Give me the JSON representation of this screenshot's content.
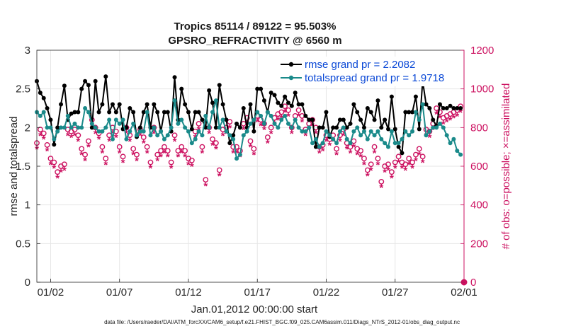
{
  "chart_data": {
    "type": "line",
    "title": "Tropics 85114 / 89122 = 95.503%",
    "subtitle": "GPSRO_REFRACTIVITY @ 6560 m",
    "xlabel": "Jan.01,2012 00:00:00 start",
    "ylabel_left": "rmse and totalspread",
    "ylabel_right": "# of obs: o=possible; ×=assimilated",
    "xlim": [
      1.0,
      32.0
    ],
    "ylim_left": [
      0,
      3
    ],
    "ylim_right": [
      0,
      1200
    ],
    "xticks": [
      {
        "label": "01/02",
        "value": 2
      },
      {
        "label": "01/07",
        "value": 7
      },
      {
        "label": "01/12",
        "value": 12
      },
      {
        "label": "01/17",
        "value": 17
      },
      {
        "label": "01/22",
        "value": 22
      },
      {
        "label": "01/27",
        "value": 27
      },
      {
        "label": "02/01",
        "value": 32
      }
    ],
    "yticks_left": [
      "0",
      "0.5",
      "1",
      "1.5",
      "2",
      "2.5",
      "3"
    ],
    "yticks_right": [
      "0",
      "200",
      "400",
      "600",
      "800",
      "1000",
      "1200"
    ],
    "grid": true,
    "legend_position": "top-right",
    "series": [
      {
        "name": "rmse grand pr = 2.2082",
        "color": "#000000",
        "axis": "left",
        "x": [
          1.0,
          1.25,
          1.5,
          1.75,
          2.0,
          2.25,
          2.5,
          2.75,
          3.0,
          3.25,
          3.5,
          3.75,
          4.0,
          4.25,
          4.5,
          4.75,
          5.0,
          5.25,
          5.5,
          5.75,
          6.0,
          6.25,
          6.5,
          6.75,
          7.0,
          7.25,
          7.5,
          7.75,
          8.0,
          8.25,
          8.5,
          8.75,
          9.0,
          9.25,
          9.5,
          9.75,
          10.0,
          10.25,
          10.5,
          10.75,
          11.0,
          11.25,
          11.5,
          11.75,
          12.0,
          12.25,
          12.5,
          12.75,
          13.0,
          13.25,
          13.5,
          13.75,
          14.0,
          14.25,
          14.5,
          14.75,
          15.0,
          15.25,
          15.5,
          15.75,
          16.0,
          16.25,
          16.5,
          16.75,
          17.0,
          17.25,
          17.5,
          17.75,
          18.0,
          18.25,
          18.5,
          18.75,
          19.0,
          19.25,
          19.5,
          19.75,
          20.0,
          20.25,
          20.5,
          20.75,
          21.0,
          21.25,
          21.5,
          21.75,
          22.0,
          22.25,
          22.5,
          22.75,
          23.0,
          23.25,
          23.5,
          23.75,
          24.0,
          24.25,
          24.5,
          24.75,
          25.0,
          25.25,
          25.5,
          25.75,
          26.0,
          26.25,
          26.5,
          26.75,
          27.0,
          27.25,
          27.5,
          27.75,
          28.0,
          28.25,
          28.5,
          28.75,
          29.0,
          29.25,
          29.5,
          29.75,
          30.0,
          30.25,
          30.5,
          30.75,
          31.0,
          31.25,
          31.5,
          31.75
        ],
        "values": [
          2.6,
          2.45,
          2.38,
          2.25,
          2.1,
          1.78,
          2.0,
          2.3,
          2.54,
          2.1,
          2.18,
          2.2,
          2.2,
          2.5,
          2.6,
          2.55,
          2.0,
          2.6,
          2.2,
          2.3,
          2.66,
          2.2,
          2.3,
          2.2,
          2.3,
          1.98,
          2.0,
          2.25,
          2.2,
          1.88,
          2.0,
          2.2,
          2.3,
          2.0,
          2.3,
          2.2,
          1.95,
          2.2,
          2.2,
          1.95,
          2.65,
          2.1,
          2.5,
          2.3,
          2.2,
          1.98,
          2.2,
          2.2,
          2.1,
          2.0,
          2.48,
          2.32,
          2.0,
          2.55,
          2.3,
          2.1,
          1.8,
          1.9,
          2.05,
          2.0,
          2.25,
          2.0,
          2.3,
          1.95,
          2.5,
          2.5,
          2.35,
          2.2,
          2.45,
          2.42,
          2.32,
          2.28,
          2.4,
          2.32,
          2.28,
          2.45,
          2.3,
          2.3,
          2.15,
          2.1,
          2.1,
          1.75,
          2.0,
          2.0,
          2.2,
          1.88,
          2.0,
          2.0,
          2.1,
          2.1,
          2.0,
          2.05,
          2.3,
          2.2,
          2.1,
          2.0,
          2.25,
          2.2,
          2.1,
          2.35,
          2.0,
          2.1,
          1.98,
          2.4,
          1.98,
          1.75,
          1.67,
          2.2,
          2.2,
          2.2,
          2.4,
          1.98,
          2.6,
          2.3,
          2.25,
          2.1,
          2.02,
          2.3,
          2.25,
          2.25,
          2.28,
          2.25,
          2.25,
          2.25
        ]
      },
      {
        "name": "totalspread grand pr = 1.9718",
        "color": "#1a8a8a",
        "axis": "left",
        "x": [
          1.0,
          1.25,
          1.5,
          1.75,
          2.0,
          2.25,
          2.5,
          2.75,
          3.0,
          3.25,
          3.5,
          3.75,
          4.0,
          4.25,
          4.5,
          4.75,
          5.0,
          5.25,
          5.5,
          5.75,
          6.0,
          6.25,
          6.5,
          6.75,
          7.0,
          7.25,
          7.5,
          7.75,
          8.0,
          8.25,
          8.5,
          8.75,
          9.0,
          9.25,
          9.5,
          9.75,
          10.0,
          10.25,
          10.5,
          10.75,
          11.0,
          11.25,
          11.5,
          11.75,
          12.0,
          12.25,
          12.5,
          12.75,
          13.0,
          13.25,
          13.5,
          13.75,
          14.0,
          14.25,
          14.5,
          14.75,
          15.0,
          15.25,
          15.5,
          15.75,
          16.0,
          16.25,
          16.5,
          16.75,
          17.0,
          17.25,
          17.5,
          17.75,
          18.0,
          18.25,
          18.5,
          18.75,
          19.0,
          19.25,
          19.5,
          19.75,
          20.0,
          20.25,
          20.5,
          20.75,
          21.0,
          21.25,
          21.5,
          21.75,
          22.0,
          22.25,
          22.5,
          22.75,
          23.0,
          23.25,
          23.5,
          23.75,
          24.0,
          24.25,
          24.5,
          24.75,
          25.0,
          25.25,
          25.5,
          25.75,
          26.0,
          26.25,
          26.5,
          26.75,
          27.0,
          27.25,
          27.5,
          27.75,
          28.0,
          28.25,
          28.5,
          28.75,
          29.0,
          29.25,
          29.5,
          29.75,
          30.0,
          30.25,
          30.5,
          30.75,
          31.0,
          31.25,
          31.5,
          31.75
        ],
        "values": [
          2.2,
          2.15,
          2.2,
          2.0,
          2.0,
          1.85,
          1.95,
          2.0,
          2.0,
          2.15,
          2.0,
          2.05,
          2.0,
          2.0,
          2.25,
          2.2,
          2.05,
          2.0,
          1.95,
          1.95,
          2.0,
          2.1,
          1.85,
          2.1,
          2.05,
          2.1,
          1.85,
          1.95,
          2.05,
          1.9,
          1.95,
          1.95,
          2.2,
          1.9,
          2.0,
          1.9,
          1.95,
          1.85,
          1.9,
          2.0,
          2.35,
          2.05,
          2.1,
          2.0,
          1.95,
          1.8,
          1.85,
          1.95,
          1.9,
          2.15,
          2.0,
          2.2,
          2.35,
          2.0,
          2.1,
          1.95,
          1.9,
          1.85,
          1.6,
          1.65,
          1.9,
          1.95,
          2.05,
          2.1,
          2.2,
          2.15,
          2.05,
          2.2,
          2.15,
          2.05,
          2.0,
          2.1,
          2.15,
          2.05,
          2.0,
          2.1,
          2.0,
          1.95,
          1.95,
          2.0,
          1.8,
          1.85,
          1.75,
          1.8,
          1.95,
          1.9,
          1.85,
          1.8,
          1.95,
          2.0,
          1.85,
          1.8,
          1.95,
          2.0,
          1.9,
          1.95,
          1.85,
          1.95,
          1.9,
          1.95,
          1.85,
          1.8,
          1.75,
          1.95,
          1.8,
          1.8,
          1.85,
          1.95,
          1.9,
          1.95,
          2.2,
          2.1,
          2.3,
          1.9,
          1.95,
          2.0,
          2.0,
          2.05,
          2.0,
          1.9,
          1.8,
          1.85,
          1.7,
          1.65
        ]
      },
      {
        "name": "possible",
        "color": "#cc1160",
        "axis": "right",
        "marker": "o",
        "x": [
          1.0,
          1.25,
          1.5,
          1.75,
          2.0,
          2.25,
          2.5,
          2.75,
          3.0,
          3.25,
          3.5,
          3.75,
          4.0,
          4.25,
          4.5,
          4.75,
          5.0,
          5.25,
          5.5,
          5.75,
          6.0,
          6.25,
          6.5,
          6.75,
          7.0,
          7.25,
          7.5,
          7.75,
          8.0,
          8.25,
          8.5,
          8.75,
          9.0,
          9.25,
          9.5,
          9.75,
          10.0,
          10.25,
          10.5,
          10.75,
          11.0,
          11.25,
          11.5,
          11.75,
          12.0,
          12.25,
          12.5,
          12.75,
          13.0,
          13.25,
          13.5,
          13.75,
          14.0,
          14.25,
          14.5,
          14.75,
          15.0,
          15.25,
          15.5,
          15.75,
          16.0,
          16.25,
          16.5,
          16.75,
          17.0,
          17.25,
          17.5,
          17.75,
          18.0,
          18.25,
          18.5,
          18.75,
          19.0,
          19.25,
          19.5,
          19.75,
          20.0,
          20.25,
          20.5,
          20.75,
          21.0,
          21.25,
          21.5,
          21.75,
          22.0,
          22.25,
          22.5,
          22.75,
          23.0,
          23.25,
          23.5,
          23.75,
          24.0,
          24.25,
          24.5,
          24.75,
          25.0,
          25.25,
          25.5,
          25.75,
          26.0,
          26.25,
          26.5,
          26.75,
          27.0,
          27.25,
          27.5,
          27.75,
          28.0,
          28.25,
          28.5,
          28.75,
          29.0,
          29.25,
          29.5,
          29.75,
          30.0,
          30.25,
          30.5,
          30.75,
          31.0,
          31.25,
          31.5,
          31.75
        ],
        "values": [
          720,
          790,
          770,
          710,
          640,
          620,
          570,
          600,
          610,
          790,
          780,
          790,
          760,
          690,
          660,
          730,
          840,
          800,
          770,
          700,
          640,
          760,
          800,
          780,
          700,
          650,
          800,
          760,
          690,
          660,
          790,
          750,
          700,
          620,
          800,
          660,
          680,
          700,
          680,
          620,
          760,
          680,
          700,
          680,
          640,
          630,
          780,
          820,
          700,
          530,
          800,
          740,
          720,
          580,
          790,
          800,
          830,
          700,
          700,
          680,
          820,
          850,
          730,
          690,
          860,
          840,
          820,
          750,
          800,
          850,
          870,
          880,
          910,
          890,
          800,
          860,
          890,
          860,
          790,
          820,
          840,
          800,
          700,
          710,
          760,
          740,
          760,
          690,
          760,
          790,
          720,
          700,
          730,
          690,
          680,
          640,
          580,
          610,
          700,
          640,
          520,
          600,
          610,
          570,
          620,
          650,
          620,
          610,
          640,
          620,
          660,
          690,
          650,
          790,
          780,
          820,
          900,
          880,
          850,
          860,
          870,
          880,
          890,
          910
        ]
      },
      {
        "name": "assimilated",
        "color": "#cc1160",
        "axis": "right",
        "marker": "*",
        "x": [
          1.0,
          1.25,
          1.5,
          1.75,
          2.0,
          2.25,
          2.5,
          2.75,
          3.0,
          3.25,
          3.5,
          3.75,
          4.0,
          4.25,
          4.5,
          4.75,
          5.0,
          5.25,
          5.5,
          5.75,
          6.0,
          6.25,
          6.5,
          6.75,
          7.0,
          7.25,
          7.5,
          7.75,
          8.0,
          8.25,
          8.5,
          8.75,
          9.0,
          9.25,
          9.5,
          9.75,
          10.0,
          10.25,
          10.5,
          10.75,
          11.0,
          11.25,
          11.5,
          11.75,
          12.0,
          12.25,
          12.5,
          12.75,
          13.0,
          13.25,
          13.5,
          13.75,
          14.0,
          14.25,
          14.5,
          14.75,
          15.0,
          15.25,
          15.5,
          15.75,
          16.0,
          16.25,
          16.5,
          16.75,
          17.0,
          17.25,
          17.5,
          17.75,
          18.0,
          18.25,
          18.5,
          18.75,
          19.0,
          19.25,
          19.5,
          19.75,
          20.0,
          20.25,
          20.5,
          20.75,
          21.0,
          21.25,
          21.5,
          21.75,
          22.0,
          22.25,
          22.5,
          22.75,
          23.0,
          23.25,
          23.5,
          23.75,
          24.0,
          24.25,
          24.5,
          24.75,
          25.0,
          25.25,
          25.5,
          25.75,
          26.0,
          26.25,
          26.5,
          26.75,
          27.0,
          27.25,
          27.5,
          27.75,
          28.0,
          28.25,
          28.5,
          28.75,
          29.0,
          29.25,
          29.5,
          29.75,
          30.0,
          30.25,
          30.5,
          30.75,
          31.0,
          31.25,
          31.5,
          31.75
        ],
        "values": [
          690,
          760,
          740,
          680,
          610,
          590,
          540,
          570,
          580,
          760,
          750,
          760,
          730,
          660,
          630,
          700,
          810,
          770,
          740,
          670,
          610,
          730,
          770,
          750,
          670,
          620,
          770,
          730,
          660,
          630,
          760,
          720,
          670,
          590,
          770,
          630,
          650,
          670,
          650,
          590,
          730,
          650,
          670,
          650,
          610,
          600,
          750,
          790,
          670,
          500,
          770,
          710,
          690,
          550,
          760,
          770,
          800,
          670,
          670,
          650,
          790,
          820,
          700,
          660,
          830,
          810,
          790,
          720,
          770,
          820,
          840,
          850,
          880,
          860,
          770,
          830,
          860,
          830,
          760,
          790,
          810,
          770,
          670,
          680,
          730,
          710,
          730,
          660,
          730,
          760,
          690,
          670,
          700,
          660,
          650,
          610,
          550,
          580,
          670,
          610,
          490,
          570,
          580,
          540,
          590,
          620,
          590,
          580,
          610,
          590,
          630,
          660,
          620,
          760,
          750,
          790,
          870,
          850,
          820,
          830,
          840,
          850,
          860,
          880
        ]
      }
    ],
    "annotations": [
      {
        "text": "0",
        "x": 32.0,
        "y_right": 0,
        "marker": "o"
      }
    ]
  },
  "footer": {
    "data_file": "data file: /Users/raeder/DAI/ATM_forcXX/CAM6_setup/f.e21.FHIST_BGC.f09_025.CAM6assim.011/Diags_NTrS_2012-01/obs_diag_output.nc"
  }
}
